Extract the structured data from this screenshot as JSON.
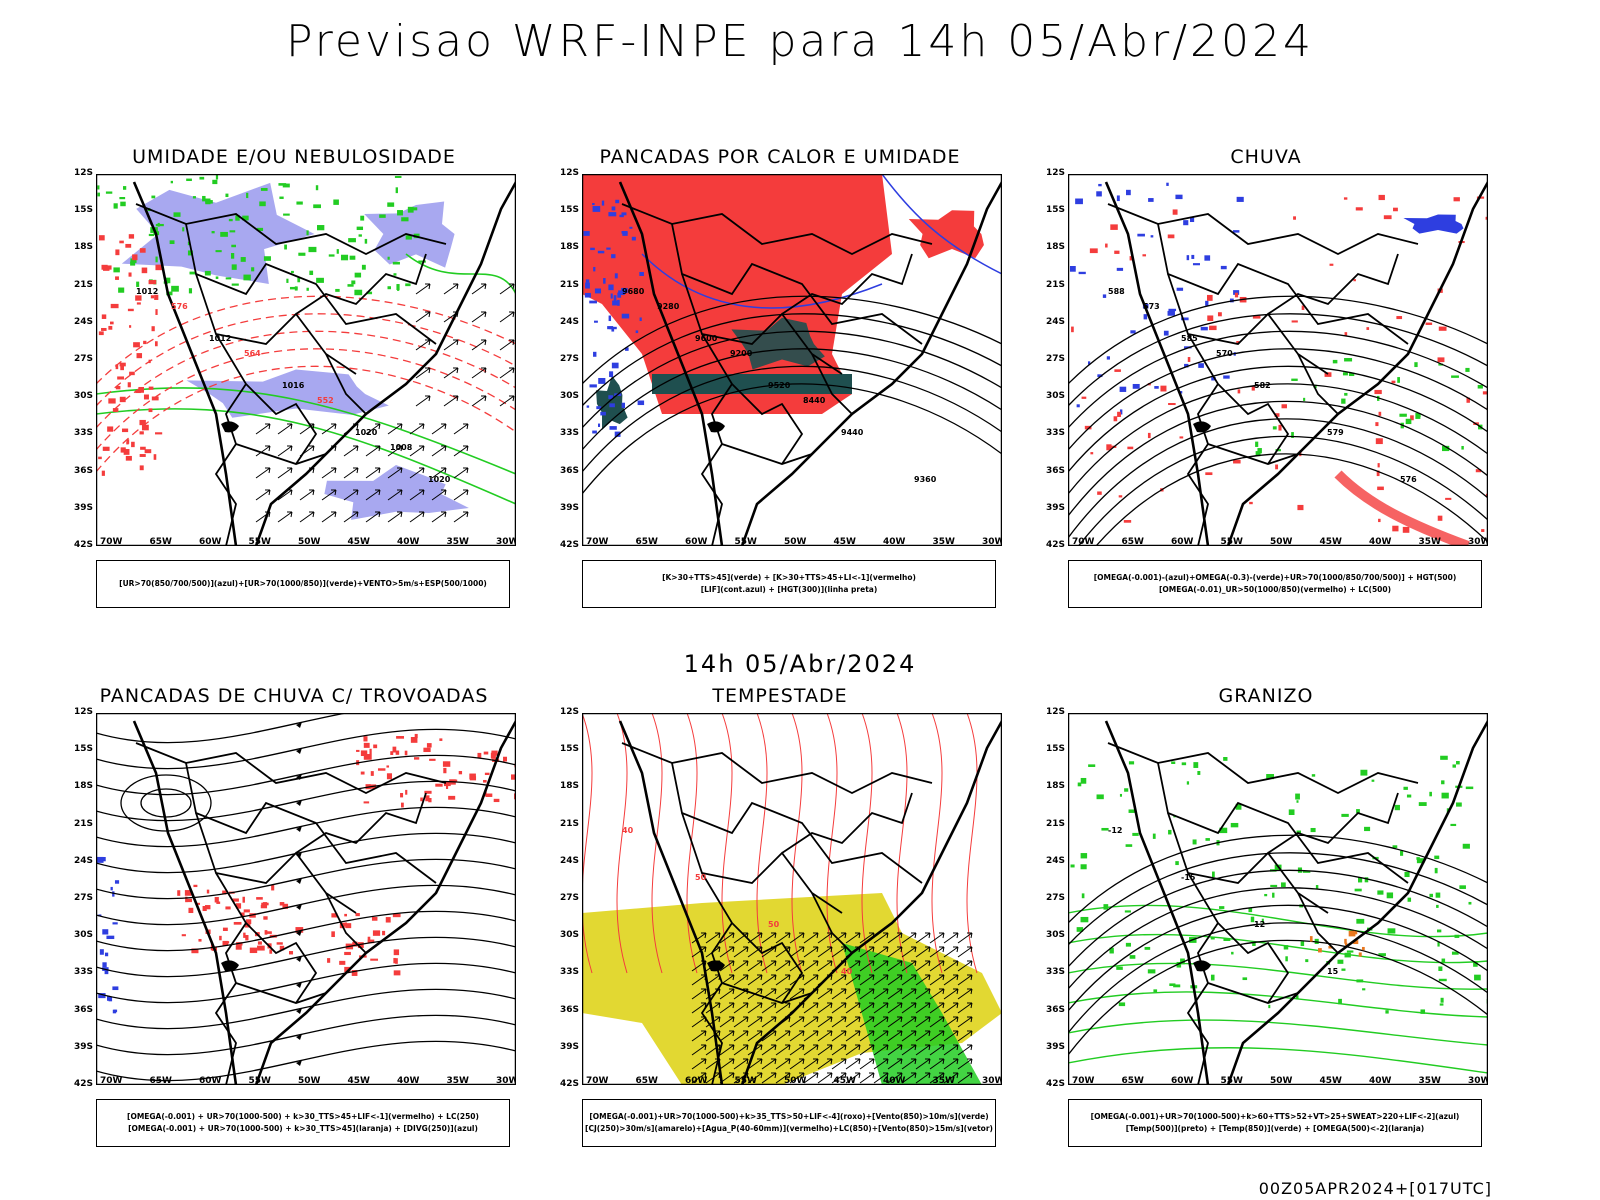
{
  "page": {
    "title": "Previsao WRF-INPE  para 14h 05/Abr/2024",
    "subtitle": "14h 05/Abr/2024",
    "footer": "00Z05APR2024+[017UTC]"
  },
  "axes": {
    "lat": [
      "12S",
      "15S",
      "18S",
      "21S",
      "24S",
      "27S",
      "30S",
      "33S",
      "36S",
      "39S",
      "42S"
    ],
    "lon": [
      "70W",
      "65W",
      "60W",
      "55W",
      "50W",
      "45W",
      "40W",
      "35W",
      "30W"
    ]
  },
  "panels": [
    {
      "id": "umidade",
      "title": "UMIDADE E/OU NEBULOSIDADE",
      "legend": [
        "[UR>70(850/700/500)](azul)+[UR>70(1000/850)](verde)+VENTO>5m/s+ESP(500/1000)"
      ],
      "labels": [
        "1012",
        "1012",
        "1016",
        "1020",
        "1020",
        "576",
        "564",
        "552",
        "1008"
      ]
    },
    {
      "id": "pancadas-calor",
      "title": "PANCADAS POR CALOR E UMIDADE",
      "legend": [
        "[K>30+TTS>45](verde) + [K>30+TTS>45+LI<-1](vermelho)",
        "[LIF](cont.azul) + [HGT(300)](linha preta)"
      ],
      "labels": [
        "9680",
        "9600",
        "9520",
        "9440",
        "9360",
        "9280",
        "9200",
        "8440"
      ]
    },
    {
      "id": "chuva",
      "title": "CHUVA",
      "legend": [
        "[OMEGA(-0.001)-(azul)+OMEGA(-0.3)-(verde)+UR>70(1000/850/700/500)] + HGT(500)",
        "[OMEGA(-0.01)_UR>50(1000/850)(vermelho) + LC(500)"
      ],
      "labels": [
        "588",
        "585",
        "582",
        "579",
        "576",
        "573",
        "570"
      ]
    },
    {
      "id": "trovoadas",
      "title": "PANCADAS DE CHUVA C/ TROVOADAS",
      "legend": [
        "[OMEGA(-0.001) + UR>70(1000-500) + k>30_TTS>45+LIF<-1](vermelho) + LC(250)",
        "[OMEGA(-0.001) + UR>70(1000-500) + k>30_TTS>45](laranja) + [DIVG(250)](azul)"
      ],
      "labels": []
    },
    {
      "id": "tempestade",
      "title": "TEMPESTADE",
      "legend": [
        "[OMEGA(-0.001)+UR>70(1000-500)+k>35_TTS>50+LIF<-4](roxo)+[Vento(850)>10m/s](verde)",
        "[CJ(250)>30m/s](amarelo)+[Agua_P(40-60mm)](vermelho)+LC(850)+[Vento(850)>15m/s](vetor)"
      ],
      "labels": [
        "40",
        "50",
        "50",
        "40"
      ]
    },
    {
      "id": "granizo",
      "title": "GRANIZO",
      "legend": [
        "[OMEGA(-0.001)+UR>70(1000-500)+k>60+TTS>52+VT>25+SWEAT>220+LIF<-2](azul)",
        "[Temp(500)](preto) + [Temp(850)](verde) + [OMEGA(500)<-2](laranja)"
      ],
      "labels": [
        "-12",
        "-15",
        "12",
        "15"
      ]
    }
  ],
  "colors": {
    "red": "#f43c3c",
    "blue": "#2e3ee0",
    "lavender": "#a8a8f0",
    "green": "#22cc22",
    "teal": "#1f4f4f",
    "yellow": "#e2d832"
  }
}
